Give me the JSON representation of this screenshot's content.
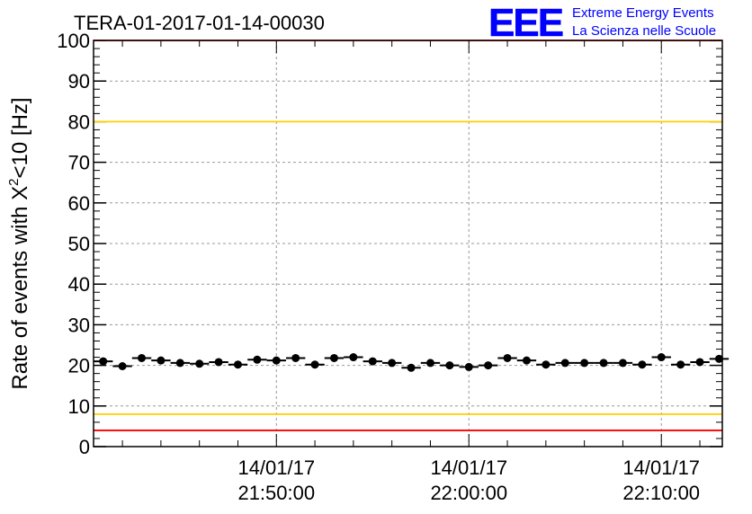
{
  "chart_data": {
    "type": "scatter",
    "title": "TERA-01-2017-01-14-00030",
    "ylabel": "Rate of events with X",
    "ylabel_sup": "2",
    "ylabel_suffix": "<10 [Hz]",
    "ylim": [
      0,
      100
    ],
    "yticks": [
      0,
      10,
      20,
      30,
      40,
      50,
      60,
      70,
      80,
      90,
      100
    ],
    "xrange_times": [
      "21:40:30",
      "22:13:10"
    ],
    "xticks": [
      {
        "time": "21:50:00",
        "date": "14/01/17",
        "label": "21:50:00"
      },
      {
        "time": "22:00:00",
        "date": "14/01/17",
        "label": "22:00:00"
      },
      {
        "time": "22:10:00",
        "date": "14/01/17",
        "label": "22:10:00"
      }
    ],
    "grid": true,
    "x": [
      "21:41",
      "21:42",
      "21:43",
      "21:44",
      "21:45",
      "21:46",
      "21:47",
      "21:48",
      "21:49",
      "21:50",
      "21:51",
      "21:52",
      "21:53",
      "21:54",
      "21:55",
      "21:56",
      "21:57",
      "21:58",
      "21:59",
      "22:00",
      "22:01",
      "22:02",
      "22:03",
      "22:04",
      "22:05",
      "22:06",
      "22:07",
      "22:08",
      "22:09",
      "22:10",
      "22:11",
      "22:12",
      "22:13"
    ],
    "values": [
      21.0,
      19.8,
      21.8,
      21.2,
      20.6,
      20.4,
      20.8,
      20.2,
      21.4,
      21.2,
      21.8,
      20.2,
      21.8,
      22.0,
      21.0,
      20.6,
      19.4,
      20.6,
      20.0,
      19.6,
      20.0,
      21.8,
      21.2,
      20.2,
      20.6,
      20.6,
      20.6,
      20.6,
      20.2,
      22.0,
      20.2,
      20.8,
      21.6
    ],
    "reference_lines": [
      {
        "value": 100,
        "color": "#ff0000"
      },
      {
        "value": 80,
        "color": "#ffcc00"
      },
      {
        "value": 8,
        "color": "#ffcc00"
      },
      {
        "value": 4,
        "color": "#ff0000"
      }
    ]
  },
  "logo": {
    "text": "EEE",
    "line1": "Extreme Energy Events",
    "line2": "La Scienza nelle Scuole",
    "color": "#0000ff"
  }
}
